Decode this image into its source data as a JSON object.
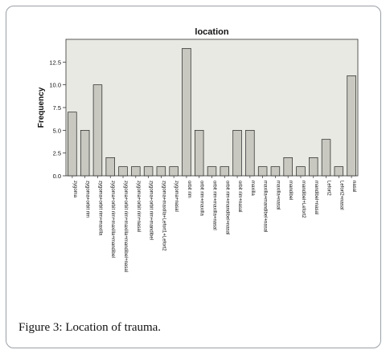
{
  "caption": {
    "label": "Figure 3:",
    "text": "Location of trauma."
  },
  "chart_data": {
    "type": "bar",
    "title": "location",
    "xlabel": "",
    "ylabel": "Frequency",
    "ylim": [
      0,
      15
    ],
    "yticks": [
      "0.0",
      "2.5",
      "5.0",
      "7.5",
      "10.0",
      "12.5"
    ],
    "grid": false,
    "bar_color": "#c8c8c0",
    "plot_background": "#e9e9e3",
    "categories": [
      "zygoma",
      "zygoma+orbit rim",
      "zygoma+orbit rim+maxilla",
      "zygoma+orbit rim+maxilla+mandibel",
      "zygoma+orbit rim+maxilla+mandibel+nasal",
      "zygoma+orbit rim+nasal",
      "zygoma+orbit rim+mandibel",
      "zygoma+maxilla+Lefort1+Lefort2",
      "zygoma+nasal",
      "orbit rim",
      "orbit rim+maxilla",
      "orbit rim+maxilla+nasal",
      "orbit rim+mandibel+nasal",
      "orbit rim+nasal",
      "maxilla",
      "maxilla+mandibel+nasal",
      "maxilla+nasal",
      "mandibel",
      "mandibel+Lefort2",
      "mandibel+nasal",
      "Lefort2",
      "Lefort2+nasal",
      "nasal"
    ],
    "values": [
      7,
      5,
      10,
      2,
      1,
      1,
      1,
      1,
      1,
      14,
      5,
      1,
      1,
      5,
      5,
      1,
      1,
      2,
      1,
      2,
      4,
      1,
      11
    ]
  }
}
